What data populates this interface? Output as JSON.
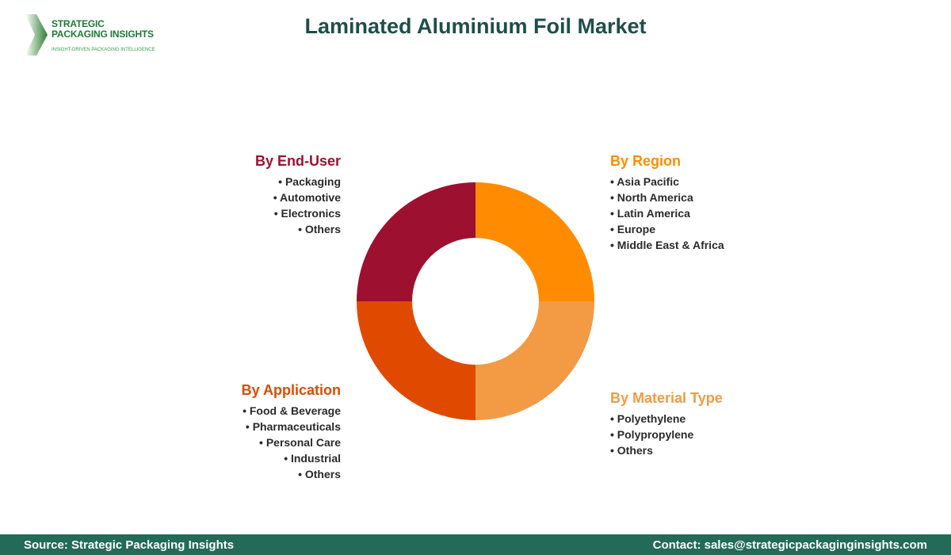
{
  "title": "Laminated Aluminium Foil Market",
  "logo": {
    "line1": "STRATEGIC",
    "line2": "PACKAGING INSIGHTS",
    "tagline": "INSIGHT-DRIVEN PACKAGING INTELLIGENCE"
  },
  "segments": [
    {
      "key": "region",
      "heading": "By Region",
      "color": "#FF8C00",
      "items": [
        "Asia Pacific",
        "North America",
        "Latin America",
        "Europe",
        "Middle East & Africa"
      ]
    },
    {
      "key": "material",
      "heading": "By Material Type",
      "color": "#F39A45",
      "items": [
        "Polyethylene",
        "Polypropylene",
        "Others"
      ]
    },
    {
      "key": "application",
      "heading": "By Application",
      "color": "#E04A00",
      "items": [
        "Food & Beverage",
        "Pharmaceuticals",
        "Personal Care",
        "Industrial",
        "Others"
      ]
    },
    {
      "key": "enduser",
      "heading": "By End-User",
      "color": "#9E1030",
      "items": [
        "Packaging",
        "Automotive",
        "Electronics",
        "Others"
      ]
    }
  ],
  "footer": {
    "source": "Source: Strategic Packaging Insights",
    "contact": "Contact: sales@strategicpackaginginsights.com"
  }
}
